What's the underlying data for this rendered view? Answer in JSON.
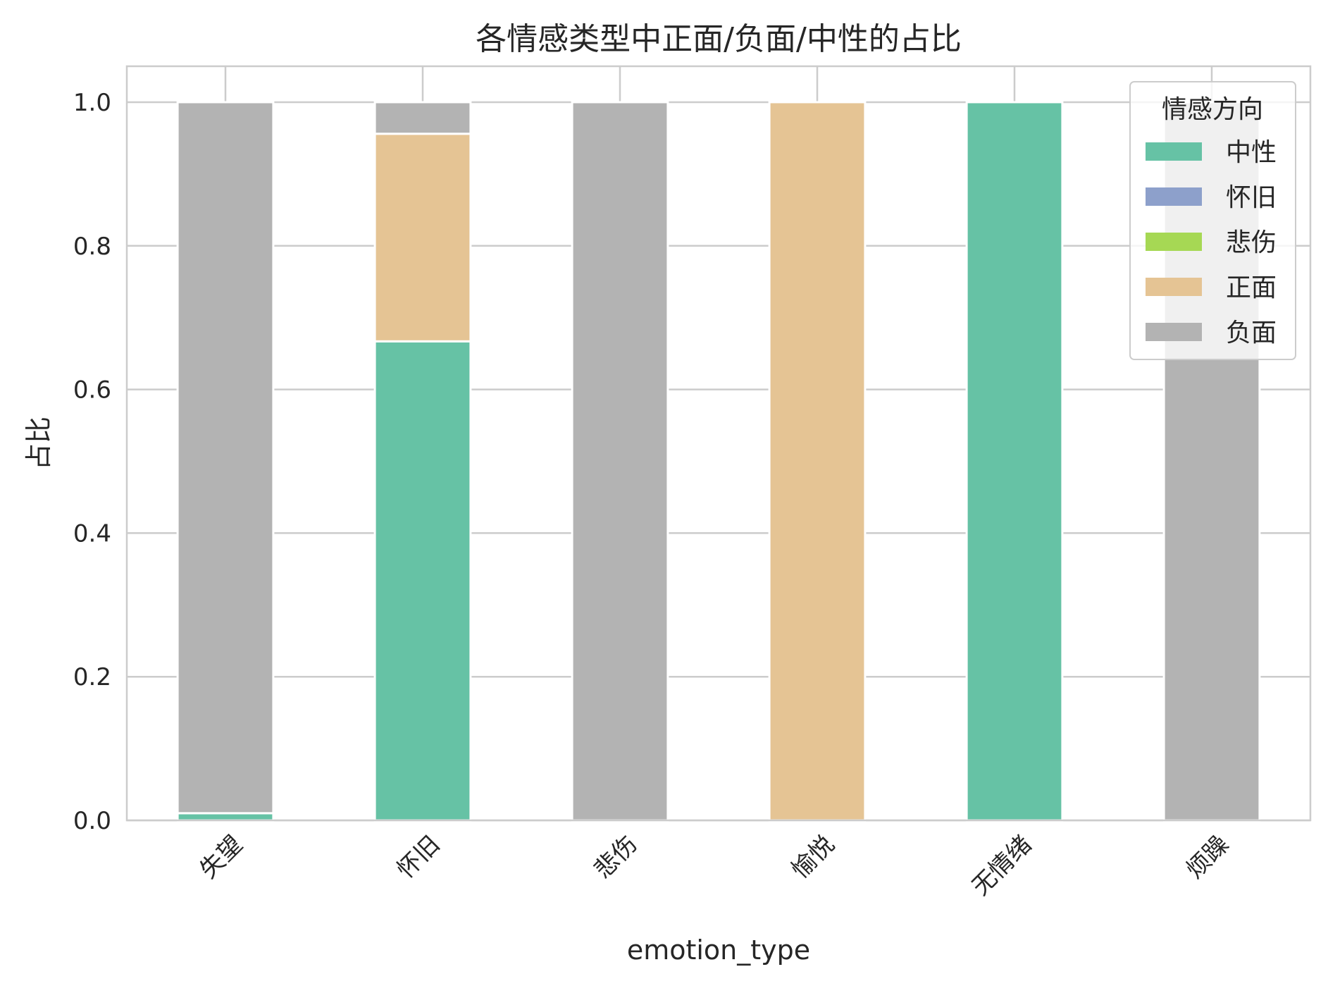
{
  "chart_data": {
    "type": "bar",
    "stacked": true,
    "title": "各情感类型中正面/负面/中性的占比",
    "xlabel": "emotion_type",
    "ylabel": "占比",
    "ylim": [
      0,
      1.05
    ],
    "yticks": [
      "0.0",
      "0.2",
      "0.4",
      "0.6",
      "0.8",
      "1.0"
    ],
    "categories": [
      "失望",
      "怀旧",
      "悲伤",
      "愉悦",
      "无情绪",
      "烦躁"
    ],
    "grid": true,
    "legend": {
      "title": "情感方向",
      "placement": "top-right"
    },
    "series": [
      {
        "name": "中性",
        "color": "#66c2a5",
        "values": [
          0.01,
          0.667,
          0.0,
          0.0,
          1.0,
          0.0
        ]
      },
      {
        "name": "怀旧",
        "color": "#8da0cb",
        "values": [
          0.0,
          0.0,
          0.0,
          0.0,
          0.0,
          0.0
        ]
      },
      {
        "name": "悲伤",
        "color": "#a6d854",
        "values": [
          0.0,
          0.0,
          0.0,
          0.0,
          0.0,
          0.0
        ]
      },
      {
        "name": "正面",
        "color": "#e5c494",
        "values": [
          0.0,
          0.289,
          0.0,
          1.0,
          0.0,
          0.0
        ]
      },
      {
        "name": "负面",
        "color": "#b3b3b3",
        "values": [
          0.99,
          0.044,
          1.0,
          0.0,
          0.0,
          1.0
        ]
      }
    ]
  }
}
